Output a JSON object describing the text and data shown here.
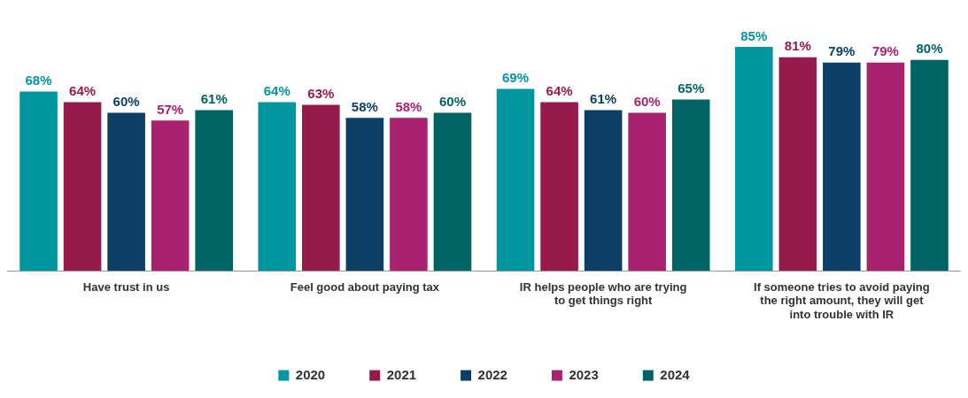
{
  "chart_data": {
    "type": "bar",
    "categories": [
      "Have trust in us",
      "Feel good about paying tax",
      "IR helps people who are trying to get things right",
      "If someone tries to avoid paying the right amount, they will get into trouble with IR"
    ],
    "series": [
      {
        "name": "2020",
        "color": "#00969f",
        "values": [
          68,
          64,
          69,
          85
        ],
        "value_labels": [
          "68%",
          "64%",
          "69%",
          "85%"
        ]
      },
      {
        "name": "2021",
        "color": "#971a4c",
        "values": [
          64,
          63,
          64,
          81
        ],
        "value_labels": [
          "64%",
          "63%",
          "64%",
          "81%"
        ]
      },
      {
        "name": "2022",
        "color": "#0d3f66",
        "values": [
          60,
          58,
          61,
          79
        ],
        "value_labels": [
          "60%",
          "58%",
          "61%",
          "79%"
        ]
      },
      {
        "name": "2023",
        "color": "#a82270",
        "values": [
          57,
          58,
          60,
          79
        ],
        "value_labels": [
          "57%",
          "58%",
          "60%",
          "79%"
        ]
      },
      {
        "name": "2024",
        "color": "#006466",
        "values": [
          61,
          60,
          65,
          80
        ],
        "value_labels": [
          "61%",
          "60%",
          "65%",
          "80%"
        ]
      }
    ],
    "legend": "bottom"
  }
}
